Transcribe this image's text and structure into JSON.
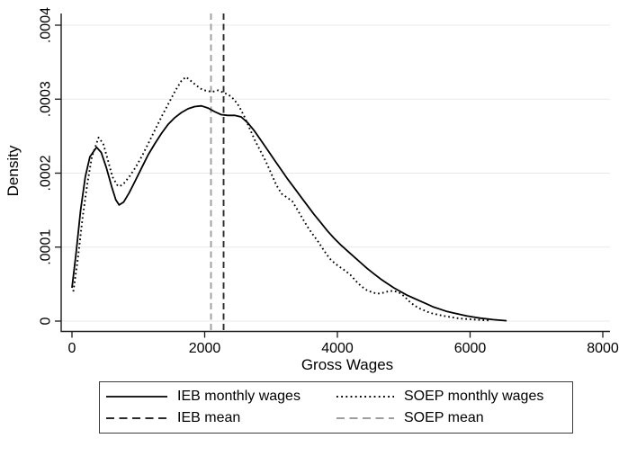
{
  "chart_data": {
    "type": "line",
    "title": "",
    "xlabel": "Gross Wages",
    "ylabel": "Density",
    "xlim": [
      0,
      8000
    ],
    "ylim": [
      0,
      0.0004
    ],
    "grid": "horizontal",
    "grid_color": "#e8e8e8",
    "axis_color": "#1a1a1a",
    "legend_position": "bottom",
    "x_ticks": [
      {
        "value": 0,
        "label": "0"
      },
      {
        "value": 2000,
        "label": "2000"
      },
      {
        "value": 4000,
        "label": "4000"
      },
      {
        "value": 6000,
        "label": "6000"
      },
      {
        "value": 8000,
        "label": "8000"
      }
    ],
    "y_ticks": [
      {
        "value": 0,
        "label": "0"
      },
      {
        "value": 0.0001,
        "label": ".0001"
      },
      {
        "value": 0.0002,
        "label": ".0002"
      },
      {
        "value": 0.0003,
        "label": ".0003"
      },
      {
        "value": 0.0004,
        "label": ".0004"
      }
    ],
    "series": [
      {
        "name": "IEB monthly wages",
        "style": "solid",
        "color": "#000000",
        "points": [
          [
            0,
            4.5e-05
          ],
          [
            60,
            9e-05
          ],
          [
            130,
            0.00015
          ],
          [
            200,
            0.000195
          ],
          [
            270,
            0.000222
          ],
          [
            370,
            0.000235
          ],
          [
            440,
            0.000228
          ],
          [
            520,
            0.000207
          ],
          [
            600,
            0.000181
          ],
          [
            660,
            0.000164
          ],
          [
            710,
            0.000157
          ],
          [
            780,
            0.000161
          ],
          [
            860,
            0.000173
          ],
          [
            950,
            0.000189
          ],
          [
            1050,
            0.000207
          ],
          [
            1150,
            0.000225
          ],
          [
            1250,
            0.00024
          ],
          [
            1350,
            0.000254
          ],
          [
            1450,
            0.000266
          ],
          [
            1550,
            0.000275
          ],
          [
            1650,
            0.000282
          ],
          [
            1750,
            0.000287
          ],
          [
            1850,
            0.00029
          ],
          [
            1950,
            0.000291
          ],
          [
            2050,
            0.000288
          ],
          [
            2150,
            0.000283
          ],
          [
            2250,
            0.000279
          ],
          [
            2350,
            0.000278
          ],
          [
            2450,
            0.000278
          ],
          [
            2550,
            0.000276
          ],
          [
            2650,
            0.000268
          ],
          [
            2750,
            0.000257
          ],
          [
            2850,
            0.000244
          ],
          [
            2950,
            0.000231
          ],
          [
            3050,
            0.000218
          ],
          [
            3150,
            0.000205
          ],
          [
            3250,
            0.000192
          ],
          [
            3350,
            0.00018
          ],
          [
            3450,
            0.000168
          ],
          [
            3550,
            0.000156
          ],
          [
            3650,
            0.000144
          ],
          [
            3750,
            0.000133
          ],
          [
            3850,
            0.000122
          ],
          [
            3950,
            0.000112
          ],
          [
            4050,
            0.000103
          ],
          [
            4150,
            9.5e-05
          ],
          [
            4250,
            8.7e-05
          ],
          [
            4350,
            7.9e-05
          ],
          [
            4450,
            7.1e-05
          ],
          [
            4550,
            6.4e-05
          ],
          [
            4650,
            5.7e-05
          ],
          [
            4750,
            5.1e-05
          ],
          [
            4850,
            4.5e-05
          ],
          [
            4950,
            4e-05
          ],
          [
            5050,
            3.5e-05
          ],
          [
            5150,
            3.1e-05
          ],
          [
            5250,
            2.7e-05
          ],
          [
            5350,
            2.3e-05
          ],
          [
            5450,
            1.9e-05
          ],
          [
            5550,
            1.6e-05
          ],
          [
            5650,
            1.3e-05
          ],
          [
            5750,
            1.1e-05
          ],
          [
            5850,
            9e-06
          ],
          [
            5950,
            7e-06
          ],
          [
            6050,
            5.5e-06
          ],
          [
            6150,
            4e-06
          ],
          [
            6250,
            3e-06
          ],
          [
            6350,
            2e-06
          ],
          [
            6450,
            1.2e-06
          ],
          [
            6550,
            5e-07
          ]
        ]
      },
      {
        "name": "SOEP monthly wages",
        "style": "dotted",
        "color": "#000000",
        "points": [
          [
            20,
            4e-05
          ],
          [
            90,
            8.5e-05
          ],
          [
            160,
            0.00014
          ],
          [
            230,
            0.000185
          ],
          [
            300,
            0.000222
          ],
          [
            400,
            0.000248
          ],
          [
            470,
            0.00024
          ],
          [
            540,
            0.000218
          ],
          [
            610,
            0.000195
          ],
          [
            680,
            0.000184
          ],
          [
            720,
            0.000182
          ],
          [
            790,
            0.000187
          ],
          [
            870,
            0.000196
          ],
          [
            960,
            0.000208
          ],
          [
            1060,
            0.000224
          ],
          [
            1160,
            0.000242
          ],
          [
            1260,
            0.00026
          ],
          [
            1360,
            0.000278
          ],
          [
            1460,
            0.000295
          ],
          [
            1560,
            0.000312
          ],
          [
            1650,
            0.000325
          ],
          [
            1720,
            0.00033
          ],
          [
            1800,
            0.000324
          ],
          [
            1880,
            0.000318
          ],
          [
            1960,
            0.000313
          ],
          [
            2040,
            0.000311
          ],
          [
            2120,
            0.00031
          ],
          [
            2200,
            0.000312
          ],
          [
            2280,
            0.000309
          ],
          [
            2360,
            0.000306
          ],
          [
            2440,
            0.0003
          ],
          [
            2520,
            0.00029
          ],
          [
            2600,
            0.000276
          ],
          [
            2680,
            0.00026
          ],
          [
            2760,
            0.000244
          ],
          [
            2840,
            0.00023
          ],
          [
            2920,
            0.000216
          ],
          [
            3000,
            0.0002
          ],
          [
            3080,
            0.000184
          ],
          [
            3160,
            0.000172
          ],
          [
            3240,
            0.000167
          ],
          [
            3320,
            0.000162
          ],
          [
            3400,
            0.00015
          ],
          [
            3480,
            0.000138
          ],
          [
            3560,
            0.000126
          ],
          [
            3640,
            0.000116
          ],
          [
            3720,
            0.000106
          ],
          [
            3800,
            9.5e-05
          ],
          [
            3880,
            8.5e-05
          ],
          [
            3960,
            7.8e-05
          ],
          [
            4040,
            7.3e-05
          ],
          [
            4120,
            6.8e-05
          ],
          [
            4200,
            6.2e-05
          ],
          [
            4280,
            5.4e-05
          ],
          [
            4360,
            4.7e-05
          ],
          [
            4440,
            4.2e-05
          ],
          [
            4520,
            3.9e-05
          ],
          [
            4600,
            3.7e-05
          ],
          [
            4680,
            3.8e-05
          ],
          [
            4760,
            4e-05
          ],
          [
            4840,
            4.1e-05
          ],
          [
            4920,
            3.9e-05
          ],
          [
            5000,
            3.4e-05
          ],
          [
            5080,
            2.7e-05
          ],
          [
            5160,
            2.1e-05
          ],
          [
            5240,
            1.7e-05
          ],
          [
            5320,
            1.4e-05
          ],
          [
            5400,
            1.1e-05
          ],
          [
            5500,
            9e-06
          ],
          [
            5600,
            7e-06
          ],
          [
            5700,
            5.5e-06
          ],
          [
            5800,
            4e-06
          ],
          [
            5900,
            3e-06
          ],
          [
            6000,
            2.5e-06
          ],
          [
            6100,
            1.8e-06
          ],
          [
            6200,
            1.2e-06
          ],
          [
            6300,
            7e-07
          ]
        ]
      }
    ],
    "mean_lines": [
      {
        "name": "IEB mean",
        "value": 2285,
        "style": "dashed",
        "color": "#2b2b2b"
      },
      {
        "name": "SOEP mean",
        "value": 2095,
        "style": "dashed",
        "color": "#9e9e9e"
      }
    ],
    "legend": [
      {
        "label": "IEB monthly wages",
        "sample": "solid-black"
      },
      {
        "label": "SOEP monthly wages",
        "sample": "dotted-black"
      },
      {
        "label": "IEB mean",
        "sample": "dashed-dark"
      },
      {
        "label": "SOEP mean",
        "sample": "dashed-gray"
      }
    ]
  }
}
